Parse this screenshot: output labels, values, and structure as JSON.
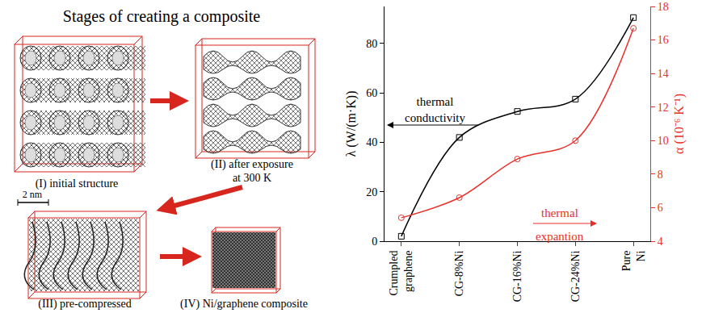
{
  "diagram": {
    "title": "Stages of creating a composite",
    "stages": [
      {
        "lines": [
          "(I) initial structure"
        ]
      },
      {
        "lines": [
          "(II) after exposure",
          "at 300 K"
        ]
      },
      {
        "lines": [
          "(III) pre-compressed"
        ]
      },
      {
        "lines": [
          "(IV) Ni/graphene composite"
        ]
      }
    ],
    "scale_bar": "2 nm"
  },
  "chart_data": {
    "type": "line",
    "categories": [
      "Crumpled graphene",
      "CG-8%Ni",
      "CG-16%Ni",
      "CG-24%Ni",
      "Pure Ni"
    ],
    "ylabel": "λ (W/(m·K))",
    "y2label": "α (10⁻⁶ K⁻¹)",
    "ylim": [
      0,
      95
    ],
    "yticks": [
      0,
      20,
      40,
      60,
      80
    ],
    "y2lim": [
      4,
      18
    ],
    "y2ticks": [
      4,
      6,
      8,
      10,
      12,
      14,
      16,
      18
    ],
    "grid": false,
    "series": [
      {
        "name": "thermal conductivity",
        "color": "#000000",
        "marker": "square",
        "line_style": "solid",
        "values": [
          2,
          42,
          52.5,
          57.5,
          90.5
        ]
      },
      {
        "name": "thermal expantion",
        "color": "#e8302a",
        "marker": "circle",
        "line_style": "solid",
        "axis": "y2",
        "values": [
          5.4,
          6.6,
          8.9,
          10.0,
          16.7
        ]
      }
    ]
  }
}
